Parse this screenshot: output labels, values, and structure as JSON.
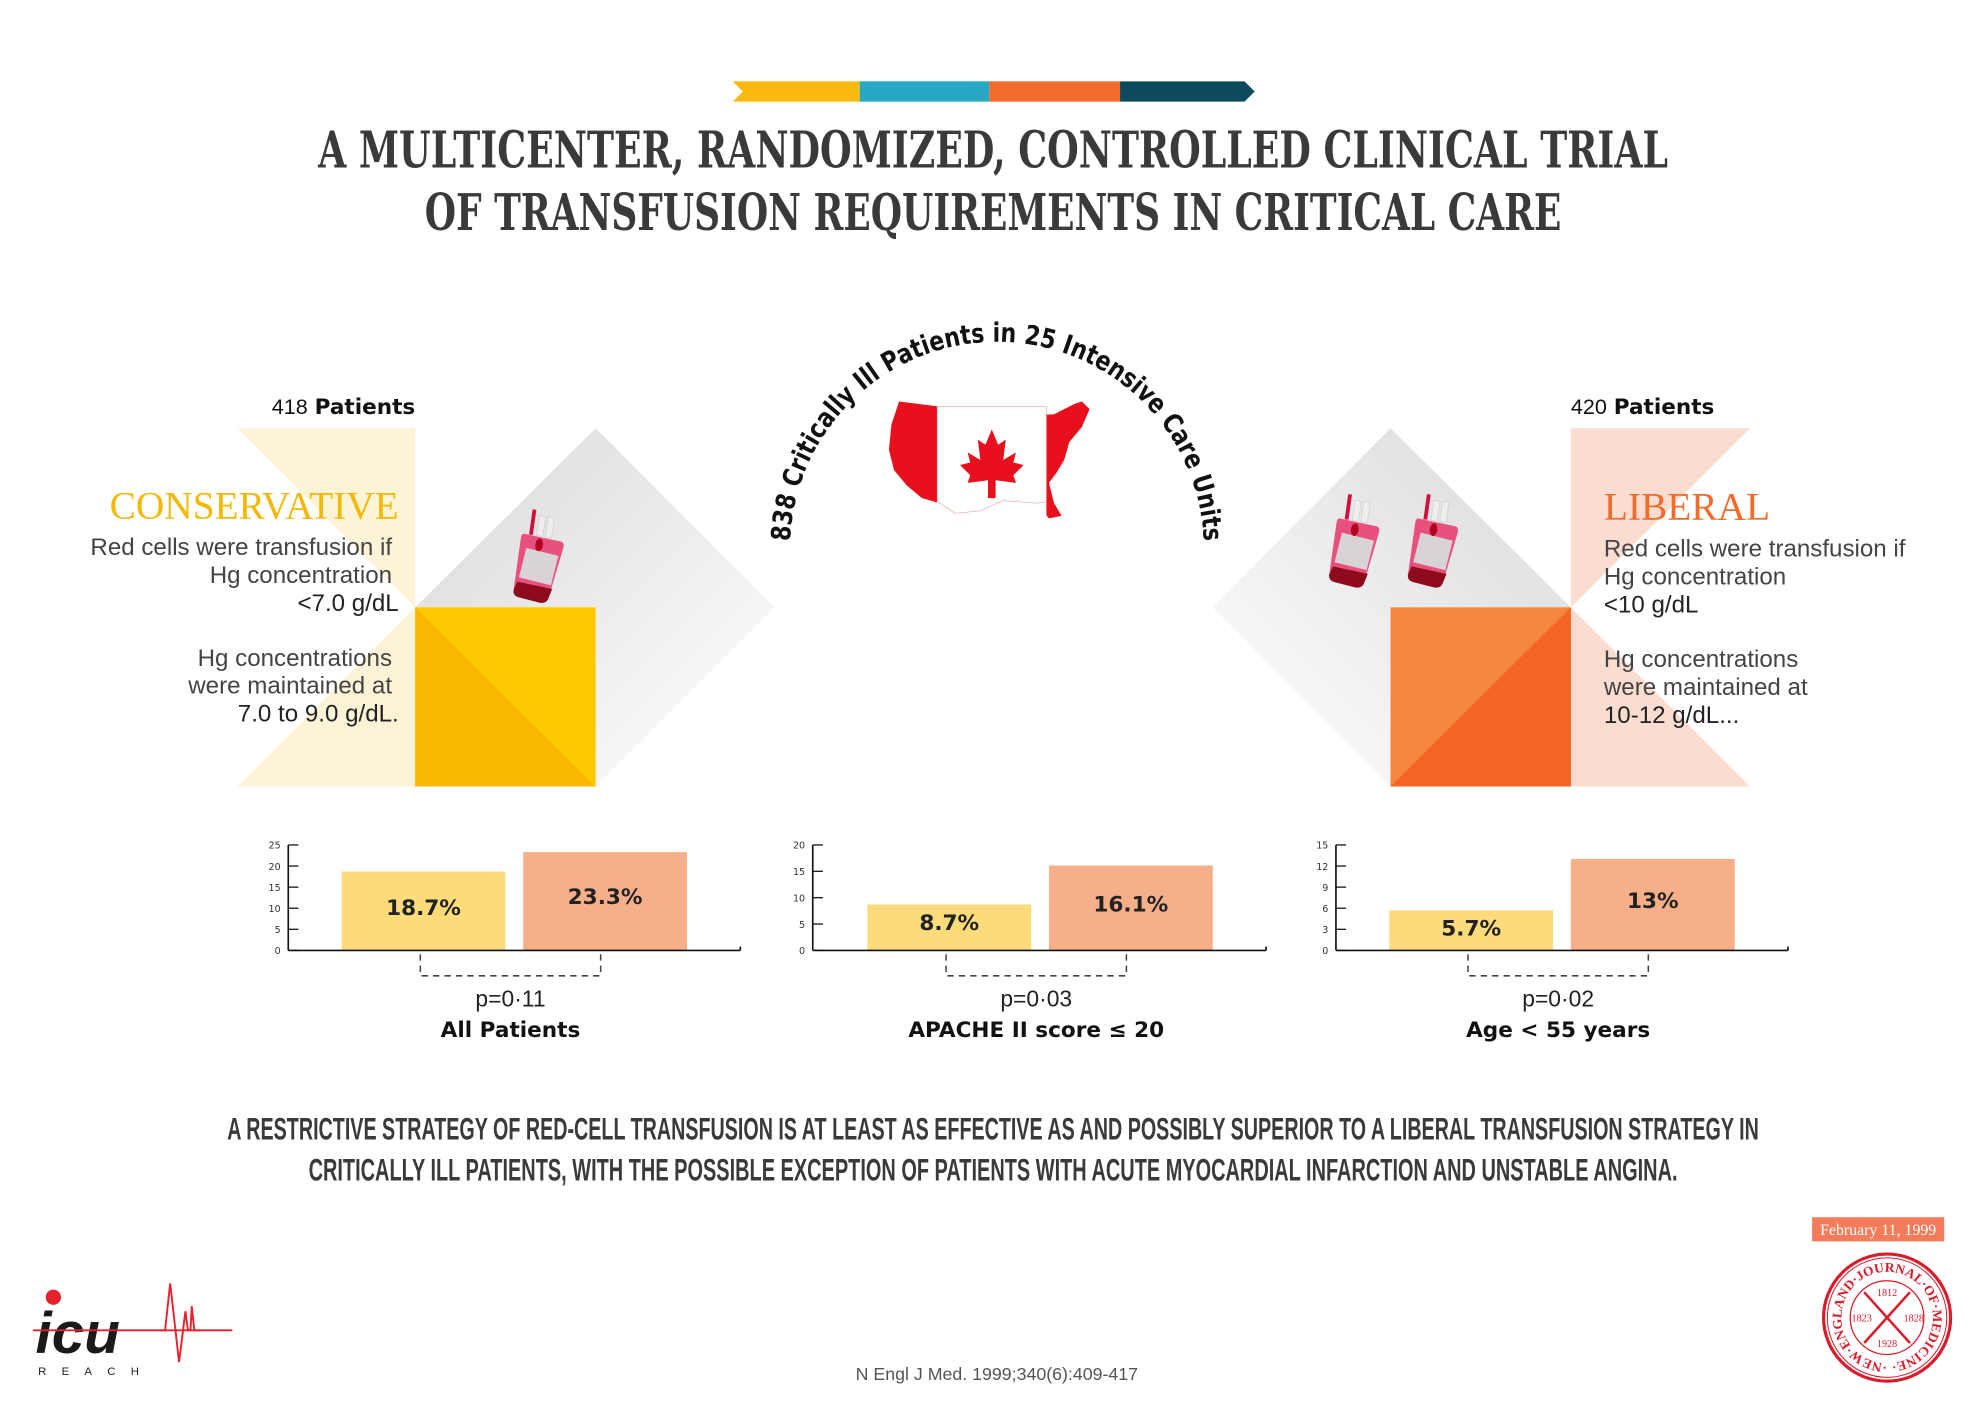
{
  "header": {
    "color_bar": [
      "#fbb80f",
      "#25a9c4",
      "#f26b2a",
      "#0d4a5e"
    ],
    "title_line1": "A MULTICENTER, RANDOMIZED, CONTROLLED CLINICAL TRIAL",
    "title_line2": "OF TRANSFUSION REQUIREMENTS IN CRITICAL CARE"
  },
  "center": {
    "arc_text": "838 Critically Ill Patients in 25 Intensive Care Units",
    "map_icon": "canada-flag-north-america-map"
  },
  "conservative": {
    "count": "418",
    "count_label": "Patients",
    "title": "CONSERVATIVE",
    "color": "#f5b800",
    "criteria_lines": [
      "Red cells were transfusion if",
      "Hg concentration",
      "<7.0 g/dL"
    ],
    "target_lines": [
      "Hg concentrations",
      "were maintained at",
      "7.0 to 9.0 g/dL."
    ],
    "icon": "blood-bag-icon"
  },
  "liberal": {
    "count": "420",
    "count_label": "Patients",
    "title": "LIBERAL",
    "color": "#f26b2a",
    "criteria_lines": [
      "Red cells were transfusion if",
      "Hg concentration",
      "<10 g/dL"
    ],
    "target_lines": [
      "Hg concentrations",
      "were maintained at",
      "10-12 g/dL..."
    ],
    "icon": "blood-bag-icon"
  },
  "chart_data": [
    {
      "type": "bar",
      "categories": [
        "Conservative",
        "Liberal"
      ],
      "values": [
        18.7,
        23.3
      ],
      "value_labels": [
        "18.7%",
        "23.3%"
      ],
      "colors": [
        "#fbdb7a",
        "#f7af8a"
      ],
      "ylim": [
        0,
        25
      ],
      "yticks": [
        0,
        5,
        10,
        15,
        20,
        25
      ],
      "p_value": "p=0·11",
      "xlabel": "All Patients"
    },
    {
      "type": "bar",
      "categories": [
        "Conservative",
        "Liberal"
      ],
      "values": [
        8.7,
        16.1
      ],
      "value_labels": [
        "8.7%",
        "16.1%"
      ],
      "colors": [
        "#fbdb7a",
        "#f7af8a"
      ],
      "ylim": [
        0,
        20
      ],
      "yticks": [
        0,
        5,
        10,
        15,
        20
      ],
      "p_value": "p=0·03",
      "xlabel": "APACHE II score ≤ 20"
    },
    {
      "type": "bar",
      "categories": [
        "Conservative",
        "Liberal"
      ],
      "values": [
        5.7,
        13
      ],
      "value_labels": [
        "5.7%",
        "13%"
      ],
      "colors": [
        "#fbdb7a",
        "#f7af8a"
      ],
      "ylim": [
        0,
        15
      ],
      "yticks": [
        0,
        3,
        6,
        9,
        12,
        15
      ],
      "p_value": "p=0·02",
      "xlabel": "Age < 55 years"
    }
  ],
  "conclusion": {
    "line1": "A RESTRICTIVE STRATEGY OF RED-CELL TRANSFUSION IS AT LEAST AS EFFECTIVE AS AND POSSIBLY SUPERIOR TO A LIBERAL TRANSFUSION STRATEGY IN",
    "line2": "CRITICALLY ILL PATIENTS, WITH THE POSSIBLE EXCEPTION OF PATIENTS WITH ACUTE MYOCARDIAL INFARCTION AND UNSTABLE ANGINA."
  },
  "footer": {
    "date": "February 11, 1999",
    "citation": "N Engl J Med. 1999;340(6):409-417",
    "logo_text": "icu",
    "logo_sub": "REACH",
    "seal_text": "·NEW·ENGLAND·JOURNAL·OF·MEDICINE·",
    "seal_years": [
      "1812",
      "1823",
      "1828",
      "1928"
    ]
  }
}
